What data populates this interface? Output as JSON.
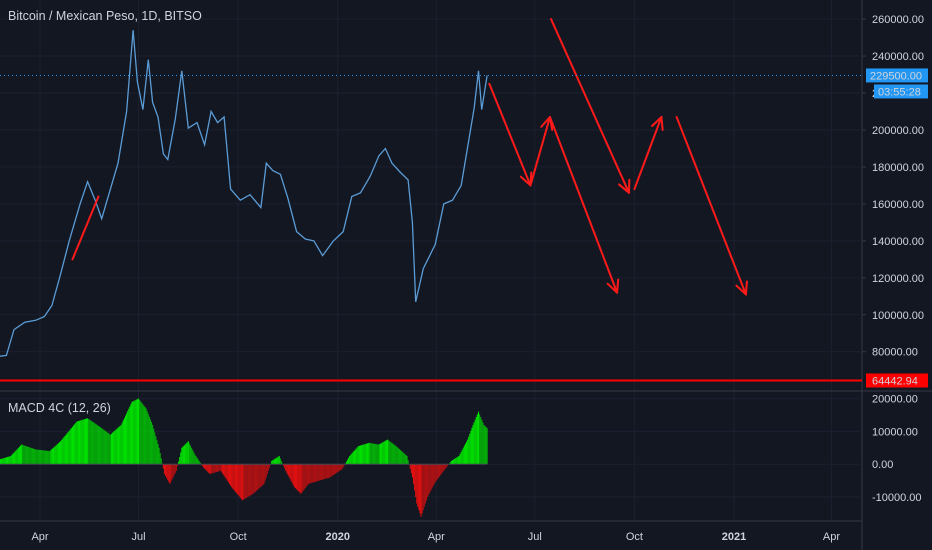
{
  "header": {
    "title": "Bitcoin / Mexican Peso, 1D, BITSO"
  },
  "price_panel": {
    "current_price_label": "229500.00",
    "countdown_label": "03:55:28",
    "support_label": "64442.94"
  },
  "macd_panel": {
    "title": "MACD 4C (12, 26)"
  },
  "colors": {
    "background": "#131722",
    "price_line": "#5b9cd6",
    "arrows": "#ff1a1a",
    "macd_up": "#00e000",
    "macd_down": "#e01010",
    "price_tag": "#2196f3",
    "support_tag": "#ff0000"
  },
  "chart_data": [
    {
      "type": "line",
      "title": "Bitcoin / Mexican Peso, 1D, BITSO",
      "x_ticks": [
        "Apr",
        "Jul",
        "Oct",
        "2020",
        "Apr",
        "Jul",
        "Oct",
        "2021",
        "Apr"
      ],
      "x_tick_dates": [
        "2019-04-01",
        "2019-07-01",
        "2019-10-01",
        "2020-01-01",
        "2020-04-01",
        "2020-07-01",
        "2020-10-01",
        "2021-01-01",
        "2021-04-01"
      ],
      "y_ticks": [
        "260000.00",
        "240000.00",
        "220000.00",
        "200000.00",
        "180000.00",
        "160000.00",
        "140000.00",
        "120000.00",
        "100000.00",
        "80000.00"
      ],
      "ylim": [
        62000,
        266000
      ],
      "series": [
        {
          "name": "",
          "points": [
            [
              "2019-01-01",
              73000
            ],
            [
              "2019-01-15",
              75000
            ],
            [
              "2019-02-01",
              74000
            ],
            [
              "2019-02-15",
              77000
            ],
            [
              "2019-03-01",
              78000
            ],
            [
              "2019-03-08",
              92000
            ],
            [
              "2019-03-18",
              96000
            ],
            [
              "2019-03-28",
              97000
            ],
            [
              "2019-04-05",
              99000
            ],
            [
              "2019-04-12",
              105000
            ],
            [
              "2019-04-20",
              122000
            ],
            [
              "2019-04-28",
              140000
            ],
            [
              "2019-05-08",
              160000
            ],
            [
              "2019-05-15",
              172000
            ],
            [
              "2019-05-22",
              162000
            ],
            [
              "2019-05-28",
              152000
            ],
            [
              "2019-06-05",
              168000
            ],
            [
              "2019-06-12",
              182000
            ],
            [
              "2019-06-20",
              210000
            ],
            [
              "2019-06-26",
              254000
            ],
            [
              "2019-06-30",
              226000
            ],
            [
              "2019-07-05",
              211000
            ],
            [
              "2019-07-10",
              238000
            ],
            [
              "2019-07-14",
              215000
            ],
            [
              "2019-07-19",
              207000
            ],
            [
              "2019-07-24",
              187000
            ],
            [
              "2019-07-28",
              184000
            ],
            [
              "2019-08-04",
              206000
            ],
            [
              "2019-08-10",
              232000
            ],
            [
              "2019-08-16",
              201000
            ],
            [
              "2019-08-24",
              204000
            ],
            [
              "2019-08-31",
              192000
            ],
            [
              "2019-09-06",
              210000
            ],
            [
              "2019-09-12",
              204000
            ],
            [
              "2019-09-18",
              207000
            ],
            [
              "2019-09-24",
              168000
            ],
            [
              "2019-10-03",
              162000
            ],
            [
              "2019-10-12",
              165000
            ],
            [
              "2019-10-22",
              158000
            ],
            [
              "2019-10-27",
              182000
            ],
            [
              "2019-11-02",
              178000
            ],
            [
              "2019-11-09",
              176000
            ],
            [
              "2019-11-16",
              163000
            ],
            [
              "2019-11-24",
              145000
            ],
            [
              "2019-12-02",
              141000
            ],
            [
              "2019-12-10",
              140000
            ],
            [
              "2019-12-18",
              132000
            ],
            [
              "2019-12-28",
              140000
            ],
            [
              "2020-01-06",
              145000
            ],
            [
              "2020-01-14",
              164000
            ],
            [
              "2020-01-22",
              166000
            ],
            [
              "2020-01-31",
              175000
            ],
            [
              "2020-02-08",
              186000
            ],
            [
              "2020-02-14",
              190000
            ],
            [
              "2020-02-20",
              182000
            ],
            [
              "2020-02-28",
              177000
            ],
            [
              "2020-03-06",
              173000
            ],
            [
              "2020-03-10",
              150000
            ],
            [
              "2020-03-13",
              107000
            ],
            [
              "2020-03-20",
              125000
            ],
            [
              "2020-03-31",
              138000
            ],
            [
              "2020-04-08",
              160000
            ],
            [
              "2020-04-16",
              162000
            ],
            [
              "2020-04-24",
              170000
            ],
            [
              "2020-04-30",
              191000
            ],
            [
              "2020-05-06",
              212000
            ],
            [
              "2020-05-10",
              232000
            ],
            [
              "2020-05-13",
              211000
            ],
            [
              "2020-05-18",
              229500
            ]
          ]
        }
      ],
      "reference_lines": [
        {
          "label": "229500.00",
          "value": 229500,
          "style": "dotted"
        },
        {
          "label": "64442.94",
          "value": 64442.94,
          "style": "solid"
        }
      ],
      "annotations": {
        "type": "hand-drawn arrows",
        "segments": [
          [
            [
              "2019-05-01",
              130000
            ],
            [
              "2019-05-25",
              164000
            ]
          ],
          [
            [
              "2020-05-20",
              225000
            ],
            [
              "2020-06-27",
              170000
            ]
          ],
          [
            [
              "2020-06-27",
              170000
            ],
            [
              "2020-07-15",
              207000
            ]
          ],
          [
            [
              "2020-07-15",
              207000
            ],
            [
              "2020-09-15",
              112000
            ]
          ],
          [
            [
              "2020-07-16",
              260000
            ],
            [
              "2020-09-26",
              166000
            ]
          ],
          [
            [
              "2020-10-01",
              168000
            ],
            [
              "2020-10-26",
              207000
            ]
          ],
          [
            [
              "2020-11-09",
              207000
            ],
            [
              "2021-01-12",
              111000
            ]
          ]
        ]
      }
    },
    {
      "type": "bar",
      "title": "MACD 4C (12, 26)",
      "y_ticks": [
        "20000.00",
        "10000.00",
        "0.00",
        "-10000.00"
      ],
      "ylim": [
        -17000,
        22000
      ],
      "points": [
        [
          "2019-01-01",
          1500
        ],
        [
          "2019-02-01",
          1800
        ],
        [
          "2019-02-20",
          1200
        ],
        [
          "2019-03-05",
          2500
        ],
        [
          "2019-03-15",
          6000
        ],
        [
          "2019-03-28",
          4500
        ],
        [
          "2019-04-10",
          4000
        ],
        [
          "2019-04-20",
          7000
        ],
        [
          "2019-05-05",
          13000
        ],
        [
          "2019-05-15",
          14000
        ],
        [
          "2019-05-28",
          11000
        ],
        [
          "2019-06-05",
          9000
        ],
        [
          "2019-06-15",
          12000
        ],
        [
          "2019-06-25",
          19000
        ],
        [
          "2019-07-01",
          20000
        ],
        [
          "2019-07-08",
          17000
        ],
        [
          "2019-07-14",
          12000
        ],
        [
          "2019-07-20",
          5000
        ],
        [
          "2019-07-25",
          -3000
        ],
        [
          "2019-07-30",
          -6000
        ],
        [
          "2019-08-05",
          -2000
        ],
        [
          "2019-08-10",
          5000
        ],
        [
          "2019-08-16",
          7000
        ],
        [
          "2019-08-22",
          3000
        ],
        [
          "2019-08-30",
          -1000
        ],
        [
          "2019-09-05",
          -3000
        ],
        [
          "2019-09-15",
          -2000
        ],
        [
          "2019-09-25",
          -7000
        ],
        [
          "2019-10-05",
          -11000
        ],
        [
          "2019-10-15",
          -9000
        ],
        [
          "2019-10-25",
          -6000
        ],
        [
          "2019-11-01",
          1000
        ],
        [
          "2019-11-08",
          2500
        ],
        [
          "2019-11-14",
          -2000
        ],
        [
          "2019-11-22",
          -7000
        ],
        [
          "2019-11-28",
          -9000
        ],
        [
          "2019-12-05",
          -6000
        ],
        [
          "2019-12-15",
          -5000
        ],
        [
          "2019-12-25",
          -4000
        ],
        [
          "2020-01-05",
          -1500
        ],
        [
          "2020-01-12",
          2500
        ],
        [
          "2020-01-20",
          5500
        ],
        [
          "2020-01-30",
          6500
        ],
        [
          "2020-02-08",
          6000
        ],
        [
          "2020-02-16",
          7500
        ],
        [
          "2020-02-24",
          5500
        ],
        [
          "2020-03-05",
          2500
        ],
        [
          "2020-03-10",
          -4000
        ],
        [
          "2020-03-14",
          -12000
        ],
        [
          "2020-03-18",
          -16000
        ],
        [
          "2020-03-24",
          -10000
        ],
        [
          "2020-03-31",
          -5500
        ],
        [
          "2020-04-08",
          -2000
        ],
        [
          "2020-04-15",
          1000
        ],
        [
          "2020-04-22",
          2500
        ],
        [
          "2020-04-30",
          7500
        ],
        [
          "2020-05-05",
          12000
        ],
        [
          "2020-05-10",
          16000
        ],
        [
          "2020-05-15",
          12000
        ],
        [
          "2020-05-18",
          11000
        ]
      ]
    }
  ]
}
